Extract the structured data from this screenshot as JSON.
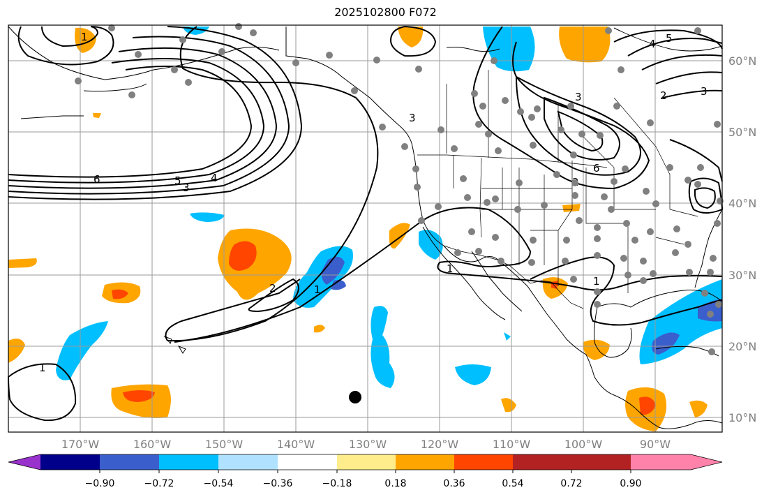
{
  "title": "2025102800 F072",
  "lat_labels": [
    "60°N",
    "50°N",
    "40°N",
    "30°N",
    "20°N",
    "10°N"
  ],
  "lon_labels": [
    "170°W",
    "160°W",
    "150°W",
    "140°W",
    "130°W",
    "120°W",
    "110°W",
    "100°W",
    "90°W"
  ],
  "colorbar": {
    "tick_labels": [
      "−0.90",
      "−0.72",
      "−0.54",
      "−0.36",
      "−0.18",
      "0.18",
      "0.36",
      "0.54",
      "0.72",
      "0.90"
    ],
    "colors": [
      "#9932cc",
      "#00008b",
      "#3a5fcd",
      "#00bfff",
      "#b0e2ff",
      "#ffffff",
      "#ffec8b",
      "#ffa500",
      "#ff4500",
      "#b22222",
      "#ff82ab"
    ]
  },
  "contour_labels": [
    "6",
    "5",
    "4",
    "3",
    "2",
    "1",
    "3",
    "6",
    "5",
    "4",
    "3",
    "2",
    "1",
    "1",
    "1",
    "2",
    "3",
    "1"
  ],
  "shading_colors": {
    "orange": "#ffa500",
    "red": "#ff4500",
    "deepsky": "#00bfff",
    "blue": "#3a5fcd"
  },
  "station_marker_color": "#808080"
}
